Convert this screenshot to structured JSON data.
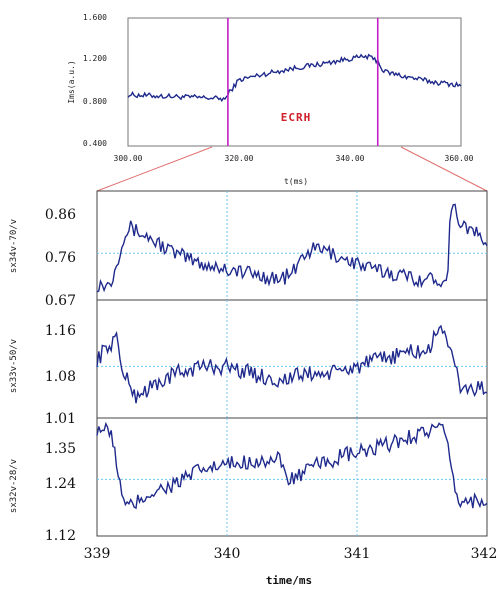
{
  "chart_data": [
    {
      "type": "line",
      "title": "",
      "xlabel": "t(ms)",
      "ylabel": "Ims(a.u.)",
      "xlim": [
        300,
        360
      ],
      "ylim": [
        0.4,
        1.6
      ],
      "xticks": [
        "300.00",
        "320.00",
        "340.00",
        "360.00"
      ],
      "yticks": [
        "0.400",
        "0.800",
        "1.200",
        "1.600"
      ],
      "grid": false,
      "color": "#1f2a8c",
      "markers": [
        {
          "x": 318,
          "color": "#c21fc8"
        },
        {
          "x": 345,
          "color": "#c21fc8"
        }
      ],
      "annotation": "ECRH",
      "series": [
        {
          "x": [
            300,
            305,
            310,
            315,
            317.5,
            318.5,
            320,
            325,
            330,
            335,
            340,
            343,
            345,
            346,
            350,
            355,
            360
          ],
          "values": [
            0.88,
            0.87,
            0.86,
            0.85,
            0.84,
            0.92,
            1.02,
            1.08,
            1.13,
            1.17,
            1.22,
            1.24,
            1.2,
            1.1,
            1.05,
            1.0,
            0.97
          ]
        }
      ]
    },
    {
      "type": "line",
      "xlabel": "",
      "ylabel": "sx34v-70/v",
      "xlim": [
        339,
        342
      ],
      "ylim": [
        0.67,
        0.88
      ],
      "yticks": [
        "0.67",
        "0.76",
        "0.86"
      ],
      "grid": true,
      "color": "#1f2a8c",
      "series": [
        {
          "x": [
            339.0,
            339.1,
            339.15,
            339.2,
            339.25,
            339.4,
            339.6,
            339.8,
            340.0,
            340.2,
            340.4,
            340.5,
            340.6,
            340.7,
            340.9,
            341.1,
            341.3,
            341.5,
            341.65,
            341.7,
            341.72,
            341.8,
            342.0
          ],
          "values": [
            0.7,
            0.7,
            0.74,
            0.79,
            0.81,
            0.79,
            0.76,
            0.74,
            0.73,
            0.72,
            0.71,
            0.72,
            0.76,
            0.77,
            0.75,
            0.73,
            0.72,
            0.71,
            0.71,
            0.72,
            0.86,
            0.82,
            0.78
          ]
        }
      ]
    },
    {
      "type": "line",
      "xlabel": "",
      "ylabel": "sx33v-50/v",
      "xlim": [
        339,
        342
      ],
      "ylim": [
        1.01,
        1.17
      ],
      "yticks": [
        "1.01",
        "1.08",
        "1.16"
      ],
      "grid": true,
      "color": "#1f2a8c",
      "series": [
        {
          "x": [
            339.0,
            339.1,
            339.15,
            339.2,
            339.3,
            339.4,
            339.6,
            339.8,
            340.0,
            340.2,
            340.4,
            340.6,
            340.8,
            341.0,
            341.2,
            341.4,
            341.55,
            341.65,
            341.75,
            341.8,
            342.0
          ],
          "values": [
            1.09,
            1.11,
            1.12,
            1.07,
            1.04,
            1.05,
            1.07,
            1.08,
            1.08,
            1.07,
            1.06,
            1.07,
            1.07,
            1.08,
            1.09,
            1.1,
            1.1,
            1.14,
            1.08,
            1.05,
            1.05
          ]
        }
      ]
    },
    {
      "type": "line",
      "xlabel": "time/ms",
      "ylabel": "sx32v-28/v",
      "xlim": [
        339,
        342
      ],
      "ylim": [
        1.12,
        1.37
      ],
      "xticks": [
        "339",
        "340",
        "341",
        "342"
      ],
      "yticks": [
        "1.12",
        "1.24",
        "1.35"
      ],
      "grid": true,
      "color": "#1f2a8c",
      "series": [
        {
          "x": [
            339.0,
            339.1,
            339.15,
            339.2,
            339.25,
            339.4,
            339.6,
            339.8,
            340.0,
            340.2,
            340.4,
            340.45,
            340.5,
            340.7,
            340.9,
            341.1,
            341.3,
            341.5,
            341.65,
            341.7,
            341.75,
            341.8,
            342.0
          ],
          "values": [
            1.35,
            1.34,
            1.28,
            1.19,
            1.18,
            1.21,
            1.23,
            1.26,
            1.27,
            1.28,
            1.28,
            1.25,
            1.24,
            1.27,
            1.29,
            1.3,
            1.32,
            1.34,
            1.35,
            1.3,
            1.22,
            1.19,
            1.2
          ]
        }
      ]
    }
  ]
}
